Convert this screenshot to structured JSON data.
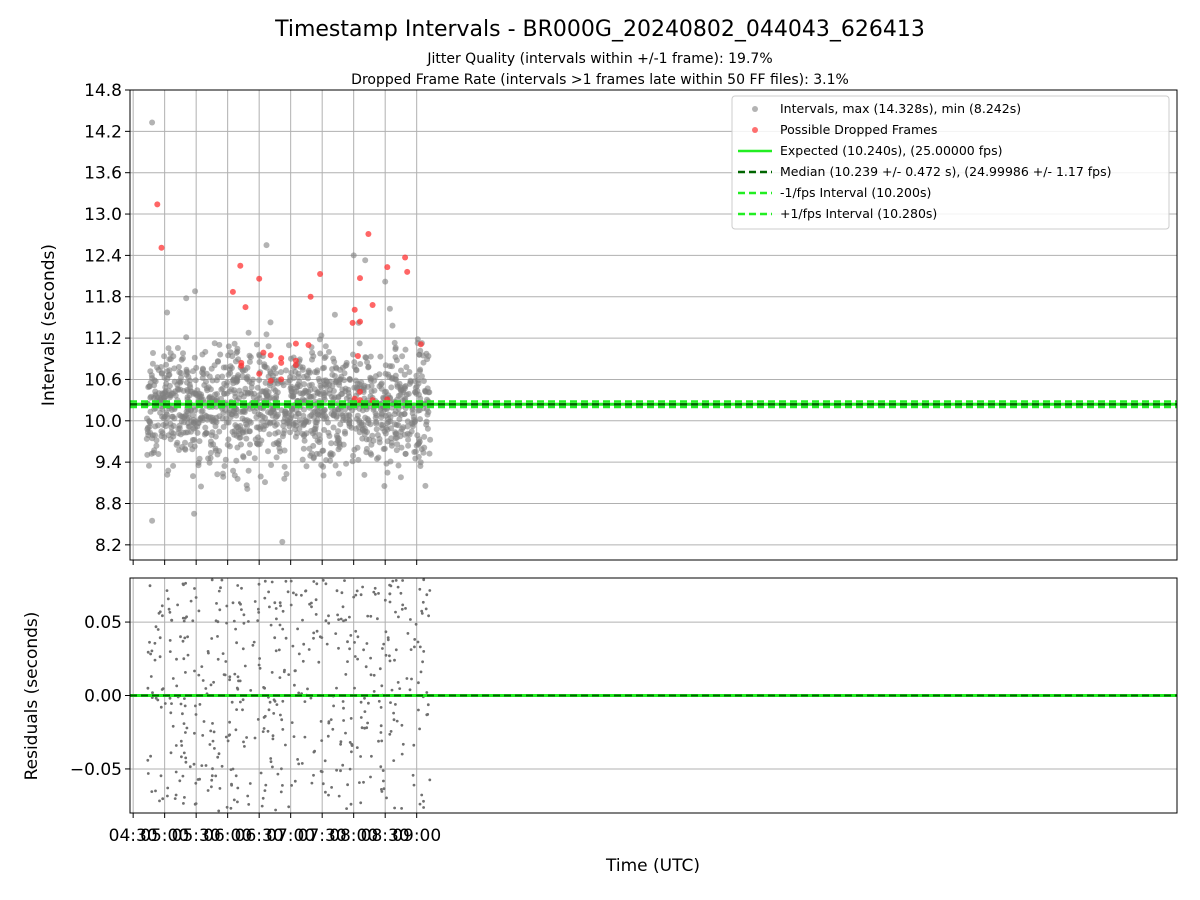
{
  "figure": {
    "title": "Timestamp Intervals - BR000G_20240802_044043_626413",
    "subtitle_line1": "Jitter Quality (intervals within +/-1 frame): 19.7%",
    "subtitle_line2": "Dropped Frame Rate (intervals >1 frames late within 50 FF files): 3.1%"
  },
  "chart_data": [
    {
      "type": "scatter",
      "ylabel": "Intervals (seconds)",
      "xlabel": "",
      "ylim": [
        7.98,
        14.8
      ],
      "xlim_minutes_utc": [
        267,
        1264
      ],
      "yticks": [
        "8.2",
        "8.8",
        "9.4",
        "10.0",
        "10.6",
        "11.2",
        "11.8",
        "12.4",
        "13.0",
        "13.6",
        "14.2",
        "14.8"
      ],
      "grid": true,
      "legend_position": "top-right",
      "legend": [
        "Intervals, max (14.328s), min (8.242s)",
        "Possible Dropped Frames",
        "Expected (10.240s), (25.00000 fps)",
        "Median (10.239 +/- 0.472 s), (24.99986 +/- 1.17 fps)",
        "-1/fps Interval (10.200s)",
        "+1/fps Interval (10.280s)"
      ],
      "reference_lines": {
        "expected": 10.24,
        "median": 10.239,
        "minus_1_fps": 10.2,
        "plus_1_fps": 10.28
      },
      "series": [
        {
          "name": "Intervals, max (14.328s), min (8.242s)",
          "color": "#808080",
          "x_range_utc": [
            "04:43",
            "09:13"
          ],
          "max": 14.328,
          "min": 8.242,
          "sample_points": [
            {
              "x": "04:48",
              "y": 14.328
            },
            {
              "x": "04:48",
              "y": 8.55
            },
            {
              "x": "06:52",
              "y": 8.242
            },
            {
              "x": "06:37",
              "y": 12.55
            },
            {
              "x": "05:29",
              "y": 11.88
            },
            {
              "x": "05:28",
              "y": 8.65
            },
            {
              "x": "08:00",
              "y": 12.4
            },
            {
              "x": "08:30",
              "y": 12.02
            },
            {
              "x": "08:11",
              "y": 12.33
            }
          ]
        },
        {
          "name": "Possible Dropped Frames",
          "color": "#ff3333",
          "points": [
            {
              "x": "04:53",
              "y": 13.14
            },
            {
              "x": "04:57",
              "y": 12.51
            },
            {
              "x": "06:05",
              "y": 11.87
            },
            {
              "x": "06:12",
              "y": 12.25
            },
            {
              "x": "06:13",
              "y": 10.84
            },
            {
              "x": "06:13",
              "y": 10.8
            },
            {
              "x": "06:17",
              "y": 11.65
            },
            {
              "x": "06:30",
              "y": 12.06
            },
            {
              "x": "06:30",
              "y": 10.68
            },
            {
              "x": "06:34",
              "y": 10.99
            },
            {
              "x": "06:41",
              "y": 10.58
            },
            {
              "x": "06:41",
              "y": 10.95
            },
            {
              "x": "06:51",
              "y": 10.91
            },
            {
              "x": "06:51",
              "y": 10.84
            },
            {
              "x": "06:51",
              "y": 10.6
            },
            {
              "x": "07:05",
              "y": 11.12
            },
            {
              "x": "07:05",
              "y": 10.87
            },
            {
              "x": "07:05",
              "y": 10.81
            },
            {
              "x": "07:17",
              "y": 11.1
            },
            {
              "x": "07:19",
              "y": 11.8
            },
            {
              "x": "07:28",
              "y": 12.13
            },
            {
              "x": "07:59",
              "y": 11.42
            },
            {
              "x": "08:01",
              "y": 11.61
            },
            {
              "x": "08:01",
              "y": 10.32
            },
            {
              "x": "08:04",
              "y": 10.94
            },
            {
              "x": "08:06",
              "y": 12.07
            },
            {
              "x": "08:06",
              "y": 11.44
            },
            {
              "x": "08:06",
              "y": 10.42
            },
            {
              "x": "08:06",
              "y": 10.3
            },
            {
              "x": "08:06",
              "y": 10.26
            },
            {
              "x": "08:14",
              "y": 12.71
            },
            {
              "x": "08:18",
              "y": 11.68
            },
            {
              "x": "08:18",
              "y": 10.3
            },
            {
              "x": "08:18",
              "y": 10.25
            },
            {
              "x": "08:32",
              "y": 12.23
            },
            {
              "x": "08:32",
              "y": 10.31
            },
            {
              "x": "08:49",
              "y": 12.37
            },
            {
              "x": "08:51",
              "y": 12.16
            },
            {
              "x": "09:04",
              "y": 11.11
            }
          ]
        }
      ]
    },
    {
      "type": "scatter",
      "ylabel": "Residuals (seconds)",
      "xlabel": "Time (UTC)",
      "ylim": [
        -0.08,
        0.08
      ],
      "yticks": [
        "0.05",
        "0.00",
        "−0.05"
      ],
      "xticks": [
        "04:30",
        "05:00",
        "05:30",
        "06:00",
        "06:30",
        "07:00",
        "07:30",
        "08:00",
        "08:30",
        "09:00"
      ],
      "grid": true,
      "reference_line": 0.0,
      "series": [
        {
          "name": "",
          "color": "#707070",
          "x_range_utc": [
            "04:43",
            "09:13"
          ],
          "y_range": [
            -0.08,
            0.08
          ]
        }
      ]
    }
  ]
}
